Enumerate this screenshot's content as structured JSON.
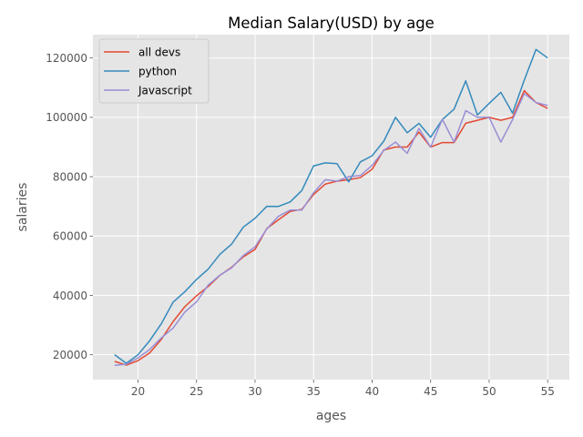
{
  "chart_data": {
    "type": "line",
    "title": "Median Salary(USD) by age",
    "xlabel": "ages",
    "ylabel": "salaries",
    "xlim": [
      16.15,
      56.85
    ],
    "ylim": [
      11620,
      127880
    ],
    "xticks": [
      20,
      25,
      30,
      35,
      40,
      45,
      50,
      55
    ],
    "yticks": [
      20000,
      40000,
      60000,
      80000,
      100000,
      120000
    ],
    "grid": true,
    "style": "ggplot",
    "legend_position": "top-left",
    "x": [
      18,
      19,
      20,
      21,
      22,
      23,
      24,
      25,
      26,
      27,
      28,
      29,
      30,
      31,
      32,
      33,
      34,
      35,
      36,
      37,
      38,
      39,
      40,
      41,
      42,
      43,
      44,
      45,
      46,
      47,
      48,
      49,
      50,
      51,
      52,
      53,
      54,
      55
    ],
    "series": [
      {
        "name": "all devs",
        "color": "#E24A33",
        "values": [
          17784,
          16500,
          18012,
          20628,
          25206,
          31176,
          36200,
          39876,
          43000,
          46762,
          49500,
          53000,
          55500,
          62500,
          65500,
          68300,
          69000,
          74000,
          77500,
          78500,
          79000,
          79700,
          82500,
          89000,
          90000,
          90000,
          95000,
          90000,
          91500,
          91500,
          98000,
          99000,
          100000,
          99000,
          100000,
          109000,
          105000,
          103000
        ]
      },
      {
        "name": "python",
        "color": "#348ABD",
        "values": [
          20046,
          17100,
          20000,
          24744,
          30500,
          37732,
          41247,
          45372,
          48876,
          53850,
          57287,
          63016,
          65998,
          70003,
          70000,
          71496,
          75370,
          83640,
          84666,
          84392,
          78254,
          85000,
          87038,
          91991,
          100000,
          94796,
          97962,
          93302,
          99240,
          102736,
          112285,
          100771,
          104708,
          108423,
          101407,
          112542,
          122870,
          120000
        ]
      },
      {
        "name": "Javascript",
        "color": "#988ED5",
        "values": [
          16446,
          16791,
          18942,
          21780,
          25704,
          29000,
          34372,
          37810,
          43515,
          46823,
          49293,
          53437,
          56373,
          62375,
          66674,
          68745,
          68746,
          74583,
          79000,
          78508,
          79996,
          80403,
          83820,
          88833,
          91660,
          87892,
          96243,
          90000,
          99313,
          91660,
          102264,
          100000,
          100000,
          91660,
          99240,
          108000,
          105000,
          104000
        ]
      }
    ]
  }
}
